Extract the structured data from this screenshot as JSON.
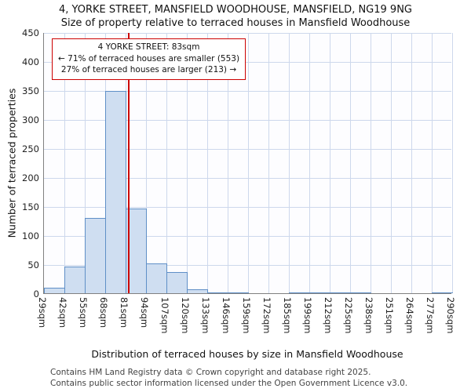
{
  "title": {
    "line1": "4, YORKE STREET, MANSFIELD WOODHOUSE, MANSFIELD, NG19 9NG",
    "line2": "Size of property relative to terraced houses in Mansfield Woodhouse"
  },
  "annotation": {
    "line1": "4 YORKE STREET: 83sqm",
    "line2": "← 71% of terraced houses are smaller (553)",
    "line3": "27% of terraced houses are larger (213) →"
  },
  "footer": {
    "line1": "Contains HM Land Registry data © Crown copyright and database right 2025.",
    "line2": "Contains public sector information licensed under the Open Government Licence v3.0."
  },
  "chart_data": {
    "type": "bar",
    "title": "Size of property relative to terraced houses in Mansfield Woodhouse",
    "xlabel": "Distribution of terraced houses by size in Mansfield Woodhouse",
    "ylabel": "Number of terraced properties",
    "bin_edges": [
      29,
      42,
      55,
      68,
      81,
      94,
      107,
      120,
      133,
      146,
      159,
      172,
      185,
      199,
      212,
      225,
      238,
      251,
      264,
      277,
      290
    ],
    "bin_labels": [
      "29sqm",
      "42sqm",
      "55sqm",
      "68sqm",
      "81sqm",
      "94sqm",
      "107sqm",
      "120sqm",
      "133sqm",
      "146sqm",
      "159sqm",
      "172sqm",
      "185sqm",
      "199sqm",
      "212sqm",
      "225sqm",
      "238sqm",
      "251sqm",
      "264sqm",
      "277sqm",
      "290sqm"
    ],
    "values": [
      10,
      46,
      130,
      348,
      146,
      51,
      37,
      7,
      2,
      2,
      0,
      0,
      1,
      1,
      1,
      1,
      0,
      0,
      0,
      2
    ],
    "ylim": [
      0,
      450
    ],
    "ytick_step": 50,
    "grid": true,
    "legend": false,
    "marker_value": 83,
    "marker_label": "4 YORKE STREET: 83sqm",
    "marker_color": "#cc0000",
    "bar_fill": "#cfdef1",
    "bar_border": "#5f8fc7",
    "grid_color": "#cdd8ec"
  }
}
